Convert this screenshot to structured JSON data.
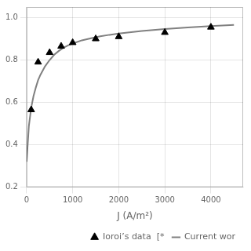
{
  "chart_data": {
    "type": "scatter",
    "xlabel": "J (A/m²)",
    "xlim": [
      0,
      4700
    ],
    "ylim": [
      0.2,
      1.05
    ],
    "xticks": [
      0,
      1000,
      2000,
      3000,
      4000
    ],
    "yticks": [
      0.2,
      0.4,
      0.6,
      0.8,
      {
        "value": 1.0,
        "label": "1.0"
      }
    ],
    "grid": true,
    "legend": "lower right",
    "series": [
      {
        "name": "Ioroi’s data  [*",
        "type": "scatter",
        "color": "#000000",
        "marker": "triangle",
        "x": [
          100,
          250,
          500,
          750,
          1000,
          1500,
          2000,
          3000,
          4000
        ],
        "values": [
          0.565,
          0.79,
          0.835,
          0.865,
          0.882,
          0.9,
          0.91,
          0.93,
          0.955
        ]
      },
      {
        "name": "Current wor",
        "type": "line",
        "color": "#808080",
        "x": [
          0,
          50,
          100,
          150,
          200,
          250,
          300,
          400,
          500,
          600,
          700,
          800,
          900,
          1000,
          1200,
          1400,
          1600,
          1800,
          2000,
          2500,
          3000,
          3500,
          4000,
          4500
        ],
        "values": [
          0.32,
          0.49,
          0.575,
          0.63,
          0.67,
          0.705,
          0.73,
          0.77,
          0.8,
          0.825,
          0.843,
          0.858,
          0.869,
          0.878,
          0.893,
          0.903,
          0.912,
          0.919,
          0.925,
          0.937,
          0.946,
          0.954,
          0.96,
          0.966
        ]
      }
    ]
  }
}
